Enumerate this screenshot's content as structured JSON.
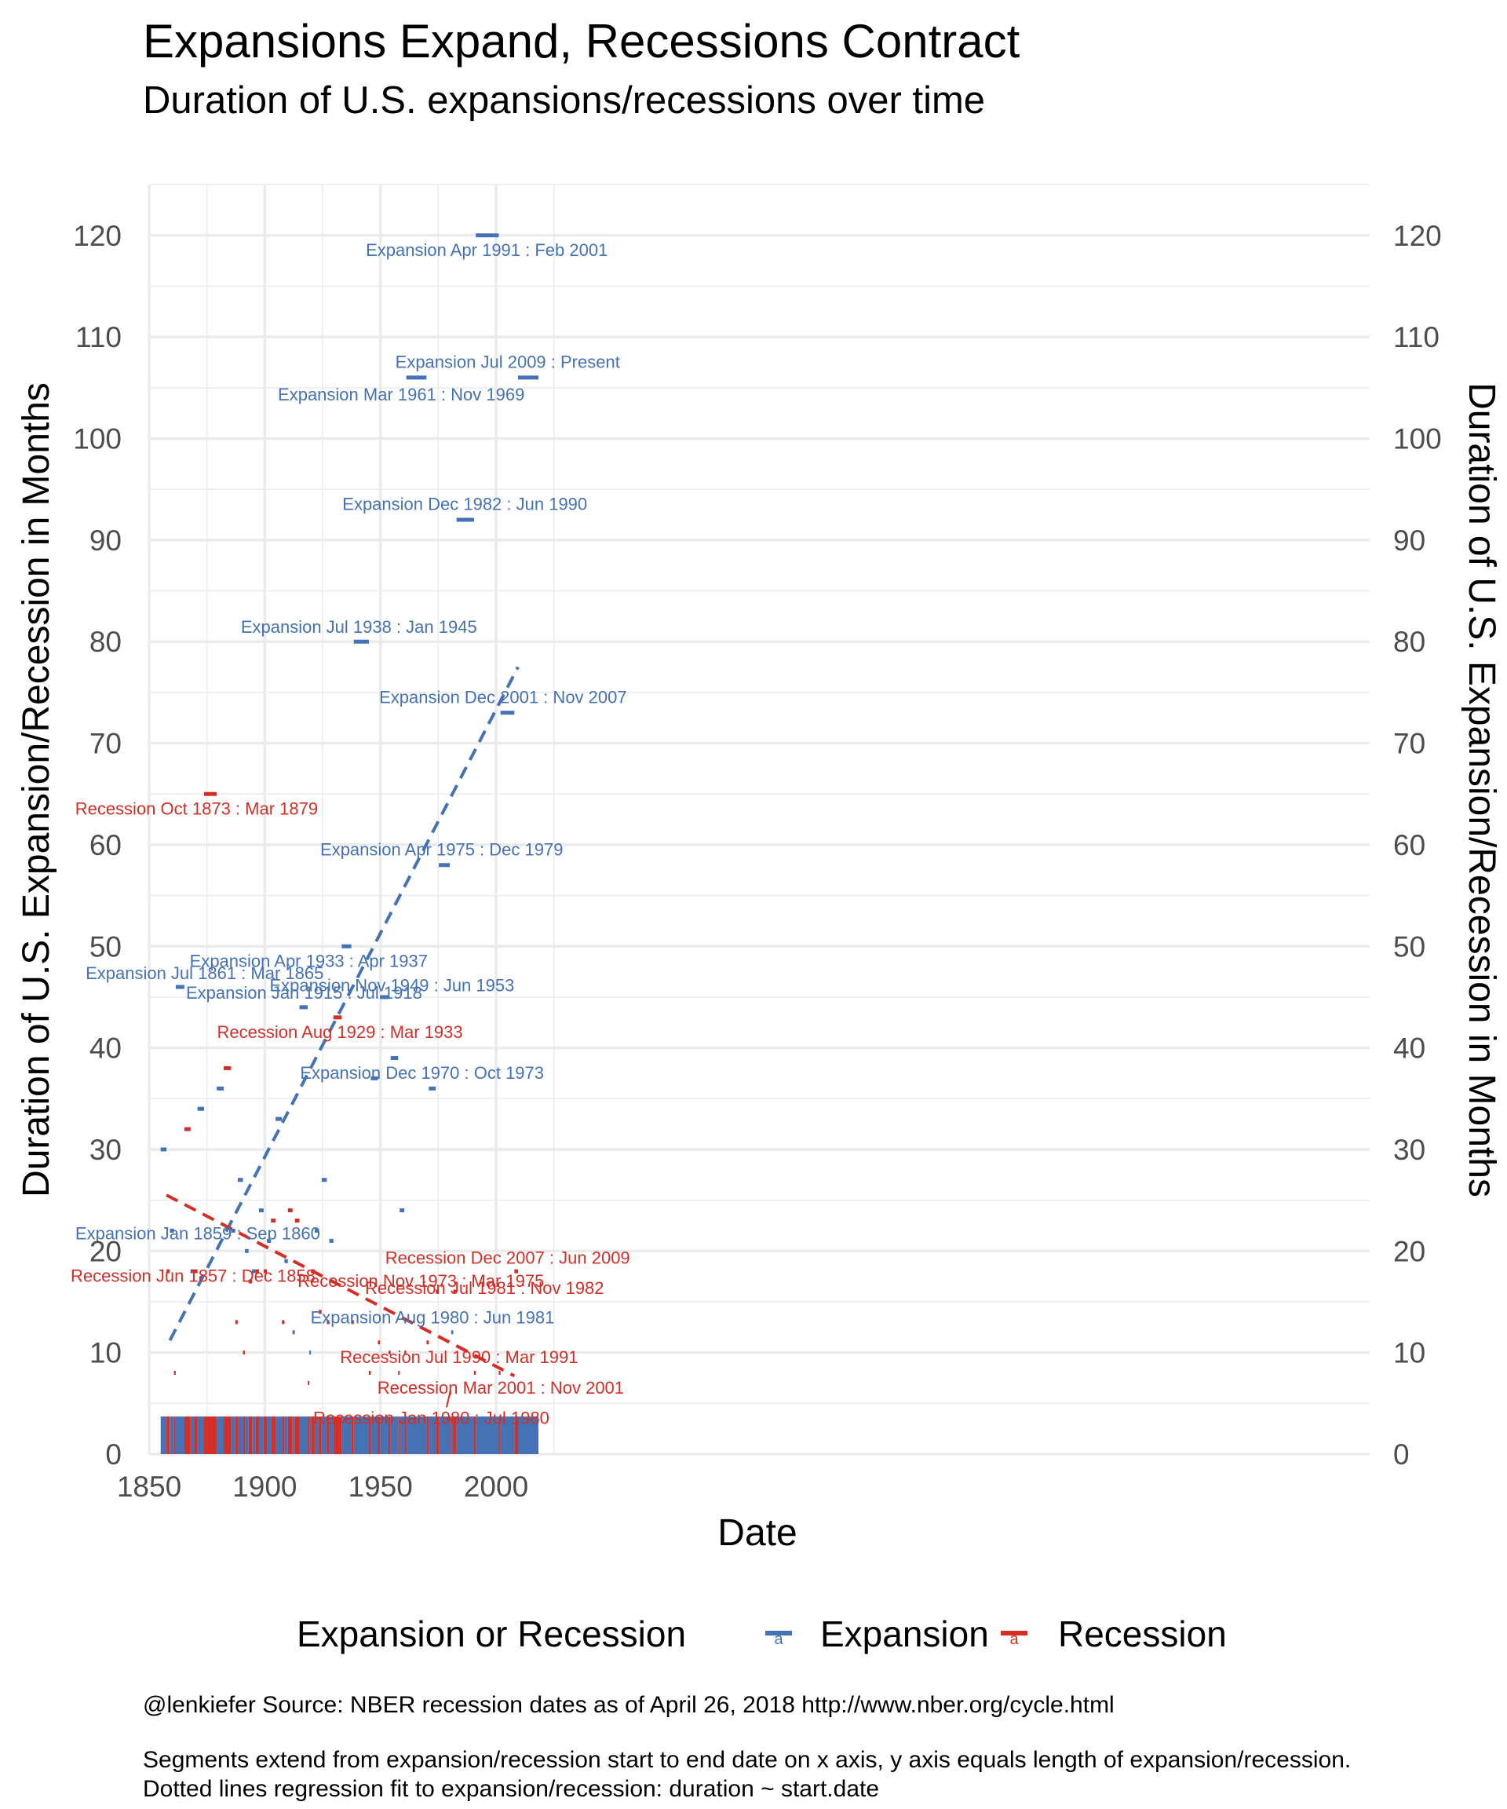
{
  "title": "Expansions Expand, Recessions Contract",
  "subtitle": "Duration of U.S. expansions/recessions over time",
  "caption_lines": [
    "@lenkiefer Source: NBER recession dates as of April 26, 2018 http://www.nber.org/cycle.html",
    "Segments extend from expansion/recession start to end date on x axis, y axis equals length of expansion/recession.",
    "Dotted lines regression fit to expansion/recession: duration ~ start.date"
  ],
  "colors": {
    "expansion": "#4472b4",
    "recession": "#d42e27",
    "grid": "#ebebeb"
  },
  "chart_data": {
    "type": "segment",
    "xlabel": "Date",
    "ylabel": "Duration of U.S. Expansion/Recession in Months",
    "ylabel_right": "Duration of U.S. Expansion/Recession in Months",
    "xlim": [
      1850,
      2025
    ],
    "ylim": [
      0,
      125
    ],
    "x_ticks": [
      1850,
      1900,
      1950,
      2000
    ],
    "y_ticks": [
      0,
      10,
      20,
      30,
      40,
      50,
      60,
      70,
      80,
      90,
      100,
      110,
      120
    ],
    "grid": true,
    "legend": {
      "title": "Expansion or Recession",
      "position": "bottom",
      "entries": [
        "Expansion",
        "Recession"
      ],
      "key_glyph": "a"
    },
    "series": [
      {
        "name": "Expansion",
        "color": "#4472b4",
        "segments": [
          {
            "start": 1855.0,
            "end": 1857.5,
            "months": 30
          },
          {
            "start": 1859.0,
            "end": 1860.75,
            "months": 22
          },
          {
            "start": 1861.5,
            "end": 1865.25,
            "months": 46
          },
          {
            "start": 1867.92,
            "end": 1869.5,
            "months": 18
          },
          {
            "start": 1870.92,
            "end": 1873.75,
            "months": 34
          },
          {
            "start": 1879.25,
            "end": 1882.25,
            "months": 36
          },
          {
            "start": 1885.42,
            "end": 1887.25,
            "months": 22
          },
          {
            "start": 1888.33,
            "end": 1890.58,
            "months": 27
          },
          {
            "start": 1891.42,
            "end": 1893.0,
            "months": 20
          },
          {
            "start": 1894.5,
            "end": 1895.92,
            "months": 18
          },
          {
            "start": 1897.5,
            "end": 1899.5,
            "months": 24
          },
          {
            "start": 1900.92,
            "end": 1902.67,
            "months": 21
          },
          {
            "start": 1904.67,
            "end": 1907.42,
            "months": 33
          },
          {
            "start": 1908.5,
            "end": 1910.0,
            "months": 19
          },
          {
            "start": 1912.0,
            "end": 1913.0,
            "months": 12
          },
          {
            "start": 1915.0,
            "end": 1918.58,
            "months": 44
          },
          {
            "start": 1919.25,
            "end": 1920.0,
            "months": 10
          },
          {
            "start": 1921.58,
            "end": 1923.33,
            "months": 22
          },
          {
            "start": 1924.58,
            "end": 1926.83,
            "months": 27
          },
          {
            "start": 1927.92,
            "end": 1929.67,
            "months": 21
          },
          {
            "start": 1933.25,
            "end": 1937.42,
            "months": 50
          },
          {
            "start": 1938.5,
            "end": 1945.0,
            "months": 80
          },
          {
            "start": 1945.83,
            "end": 1948.92,
            "months": 37
          },
          {
            "start": 1949.83,
            "end": 1953.5,
            "months": 45
          },
          {
            "start": 1954.42,
            "end": 1957.67,
            "months": 39
          },
          {
            "start": 1958.33,
            "end": 1960.33,
            "months": 24
          },
          {
            "start": 1961.17,
            "end": 1969.92,
            "months": 106
          },
          {
            "start": 1970.92,
            "end": 1973.92,
            "months": 36
          },
          {
            "start": 1975.25,
            "end": 1980.0,
            "months": 58
          },
          {
            "start": 1980.58,
            "end": 1981.5,
            "months": 12
          },
          {
            "start": 1982.92,
            "end": 1990.5,
            "months": 92
          },
          {
            "start": 1991.25,
            "end": 2001.17,
            "months": 120
          },
          {
            "start": 2001.92,
            "end": 2007.92,
            "months": 73
          },
          {
            "start": 2009.5,
            "end": 2018.33,
            "months": 106
          }
        ],
        "trend": {
          "x": [
            1859,
            2009.5
          ],
          "y": [
            11.2,
            77.5
          ]
        }
      },
      {
        "name": "Recession",
        "color": "#d42e27",
        "segments": [
          {
            "start": 1857.5,
            "end": 1858.92,
            "months": 18
          },
          {
            "start": 1860.75,
            "end": 1861.5,
            "months": 8
          },
          {
            "start": 1865.25,
            "end": 1867.92,
            "months": 32
          },
          {
            "start": 1869.5,
            "end": 1870.92,
            "months": 18
          },
          {
            "start": 1873.75,
            "end": 1879.25,
            "months": 65
          },
          {
            "start": 1882.25,
            "end": 1885.42,
            "months": 38
          },
          {
            "start": 1887.25,
            "end": 1888.33,
            "months": 13
          },
          {
            "start": 1890.58,
            "end": 1891.42,
            "months": 10
          },
          {
            "start": 1893.0,
            "end": 1894.5,
            "months": 17
          },
          {
            "start": 1895.92,
            "end": 1897.5,
            "months": 18
          },
          {
            "start": 1899.5,
            "end": 1900.92,
            "months": 18
          },
          {
            "start": 1902.67,
            "end": 1904.67,
            "months": 23
          },
          {
            "start": 1907.42,
            "end": 1908.5,
            "months": 13
          },
          {
            "start": 1910.0,
            "end": 1912.0,
            "months": 24
          },
          {
            "start": 1913.0,
            "end": 1915.0,
            "months": 23
          },
          {
            "start": 1918.58,
            "end": 1919.25,
            "months": 7
          },
          {
            "start": 1920.0,
            "end": 1921.58,
            "months": 18
          },
          {
            "start": 1923.33,
            "end": 1924.58,
            "months": 14
          },
          {
            "start": 1926.83,
            "end": 1927.92,
            "months": 13
          },
          {
            "start": 1929.67,
            "end": 1933.25,
            "months": 43
          },
          {
            "start": 1937.42,
            "end": 1938.5,
            "months": 13
          },
          {
            "start": 1945.0,
            "end": 1945.83,
            "months": 8
          },
          {
            "start": 1948.92,
            "end": 1949.83,
            "months": 11
          },
          {
            "start": 1953.5,
            "end": 1954.42,
            "months": 10
          },
          {
            "start": 1957.67,
            "end": 1958.33,
            "months": 8
          },
          {
            "start": 1960.33,
            "end": 1961.17,
            "months": 10
          },
          {
            "start": 1969.92,
            "end": 1970.92,
            "months": 11
          },
          {
            "start": 1973.92,
            "end": 1975.25,
            "months": 16
          },
          {
            "start": 1980.0,
            "end": 1980.58,
            "months": 6
          },
          {
            "start": 1981.5,
            "end": 1982.92,
            "months": 16
          },
          {
            "start": 1990.5,
            "end": 1991.25,
            "months": 8
          },
          {
            "start": 2001.17,
            "end": 2001.92,
            "months": 8
          },
          {
            "start": 2007.92,
            "end": 2009.5,
            "months": 18
          }
        ],
        "trend": {
          "x": [
            1857.5,
            2007.92
          ],
          "y": [
            25.5,
            7.7
          ]
        }
      }
    ],
    "annotations": [
      {
        "text": "Expansion Apr 1991 : Feb 2001",
        "series": "Expansion",
        "x": 1996,
        "y": 118.5
      },
      {
        "text": "Expansion Jul 2009 : Present",
        "series": "Expansion",
        "x": 2005,
        "y": 107.5
      },
      {
        "text": "Expansion Mar 1961 : Nov 1969",
        "series": "Expansion",
        "x": 1959,
        "y": 104.3
      },
      {
        "text": "Expansion Dec 1982 : Jun 1990",
        "series": "Expansion",
        "x": 1986.5,
        "y": 93.5
      },
      {
        "text": "Expansion Jul 1938 : Jan 1945",
        "series": "Expansion",
        "x": 1940.7,
        "y": 81.4
      },
      {
        "text": "Expansion Dec 2001 : Nov 2007",
        "series": "Expansion",
        "x": 2003,
        "y": 74.5
      },
      {
        "text": "Recession Oct 1873 : Mar 1879",
        "series": "Recession",
        "x": 1870.5,
        "y": 63.5
      },
      {
        "text": "Expansion Apr 1975 : Dec 1979",
        "series": "Expansion",
        "x": 1976.5,
        "y": 59.5
      },
      {
        "text": "Expansion Jul 1861 : Mar 1865",
        "series": "Expansion",
        "x": 1874,
        "y": 47.3
      },
      {
        "text": "Expansion Apr 1933 : Apr 1937",
        "series": "Expansion",
        "x": 1919,
        "y": 48.5
      },
      {
        "text": "Expansion Jan 1915 : Jul 1918",
        "series": "Expansion",
        "x": 1917,
        "y": 45.4
      },
      {
        "text": "Expansion Nov 1949 : Jun 1953",
        "series": "Expansion",
        "x": 1955,
        "y": 46.1
      },
      {
        "text": "Recession Aug 1929 : Mar 1933",
        "series": "Recession",
        "x": 1932.5,
        "y": 41.5
      },
      {
        "text": "Expansion Dec 1970 : Oct 1973",
        "series": "Expansion",
        "x": 1968,
        "y": 37.5
      },
      {
        "text": "Expansion Jan 1859 : Sep 1860",
        "series": "Expansion",
        "x": 1871,
        "y": 21.7
      },
      {
        "text": "Recession Jun 1857 : Dec 1858",
        "series": "Recession",
        "x": 1869,
        "y": 17.5
      },
      {
        "text": "Recession Dec 2007 : Jun 2009",
        "series": "Recession",
        "x": 2005,
        "y": 19.3
      },
      {
        "text": "Recession Nov 1973 : Mar 1975",
        "series": "Recession",
        "x": 1967.5,
        "y": 17.0
      },
      {
        "text": "Recession Jul 1981 : Nov 1982",
        "series": "Recession",
        "x": 1995,
        "y": 16.3
      },
      {
        "text": "Expansion Aug 1980 : Jun 1981",
        "series": "Expansion",
        "x": 1972.5,
        "y": 13.4
      },
      {
        "text": "Recession Jul 1990 : Mar 1991",
        "series": "Recession",
        "x": 1984,
        "y": 9.5
      },
      {
        "text": "Recession Mar 2001 : Nov 2001",
        "series": "Recession",
        "x": 2002,
        "y": 6.5
      },
      {
        "text": "Recession Jan 1980 : Jul 1980",
        "series": "Recession",
        "x": 1972,
        "y": 3.5
      }
    ],
    "rug": {
      "y_bottom": 0,
      "y_top": 3.7
    }
  }
}
